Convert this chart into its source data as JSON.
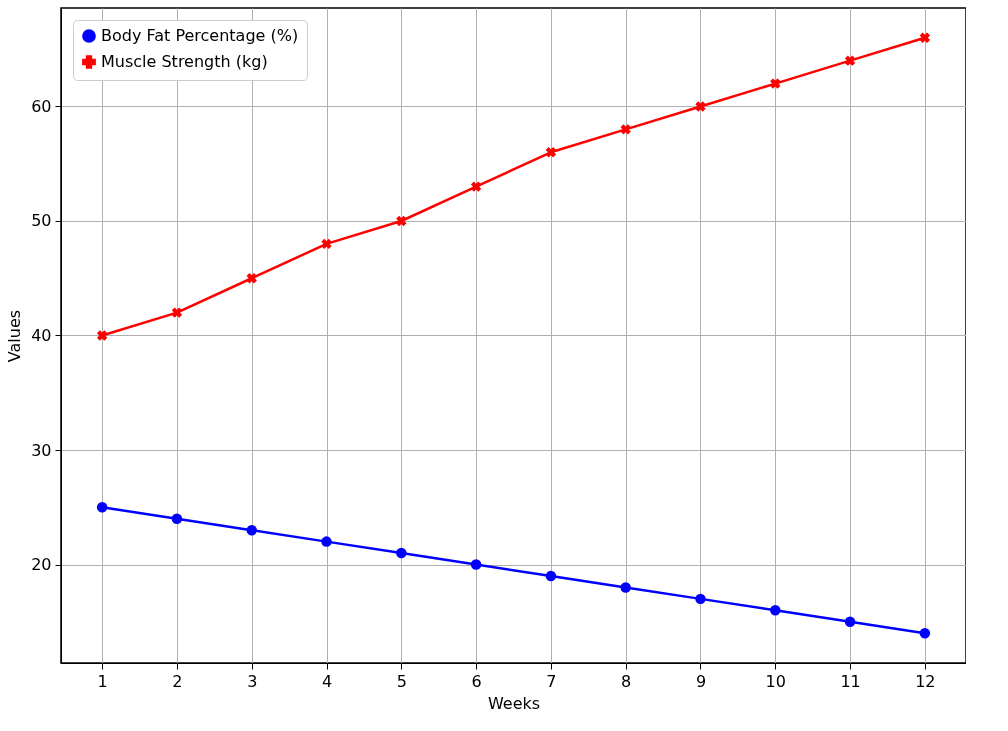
{
  "chart_data": {
    "type": "line",
    "xlabel": "Weeks",
    "ylabel": "Values",
    "x": [
      1,
      2,
      3,
      4,
      5,
      6,
      7,
      8,
      9,
      10,
      11,
      12
    ],
    "series": [
      {
        "name": "Body Fat Percentage (%)",
        "color": "#0000ff",
        "marker": "circle",
        "values": [
          25,
          24,
          23,
          22,
          21,
          20,
          19,
          18,
          17,
          16,
          15,
          14
        ]
      },
      {
        "name": "Muscle Strength (kg)",
        "color": "#ff0000",
        "marker": "cross",
        "values": [
          40,
          42,
          45,
          48,
          50,
          53,
          56,
          58,
          60,
          62,
          64,
          66
        ]
      }
    ],
    "xlim": [
      0.45,
      12.55
    ],
    "xticks": [
      1,
      2,
      3,
      4,
      5,
      6,
      7,
      8,
      9,
      10,
      11,
      12
    ],
    "ylim": [
      11.4,
      68.6
    ],
    "yticks": [
      20,
      30,
      40,
      50,
      60
    ],
    "grid": true,
    "legend": "top left",
    "line_style": "solid"
  }
}
